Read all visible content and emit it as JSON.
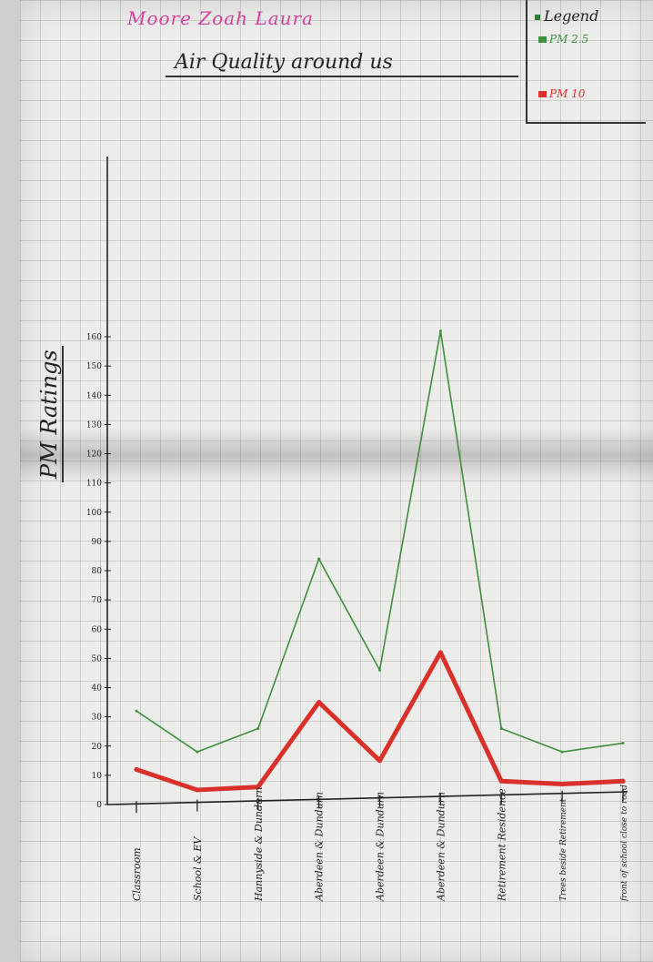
{
  "names": "Moore Zoah Laura",
  "chart_data": {
    "type": "line",
    "title": "Air Quality around us",
    "ylabel": "PM Ratings",
    "xlabel": "",
    "categories": [
      "Classroom",
      "School & EV",
      "Hannyside & Dundurn",
      "Aberdeen & Dundurn",
      "Aberdeen & Dundurn",
      "Aberdeen & Dundurn",
      "Retirement Residence",
      "Trees beside Retirement",
      "front of school close to road"
    ],
    "legend_title": "Legend",
    "legend_placement": "top-right",
    "grid": true,
    "ylim": [
      0,
      160
    ],
    "yticks": [
      0,
      10,
      20,
      30,
      40,
      50,
      60,
      70,
      80,
      90,
      100,
      110,
      120,
      130,
      140,
      150,
      160
    ],
    "ytick_labels": [
      "0",
      "10",
      "20",
      "30",
      "40",
      "50",
      "60",
      "70",
      "80",
      "90",
      "100",
      "110",
      "120",
      "130",
      "140",
      "150",
      "160"
    ],
    "series": [
      {
        "name": "PM 2.5",
        "color": "#3f8f3f",
        "values": [
          32,
          18,
          26,
          84,
          46,
          162,
          26,
          18,
          21
        ]
      },
      {
        "name": "PM 10",
        "color": "#d9302a",
        "values": [
          12,
          5,
          6,
          35,
          15,
          52,
          8,
          7,
          8
        ]
      }
    ]
  }
}
